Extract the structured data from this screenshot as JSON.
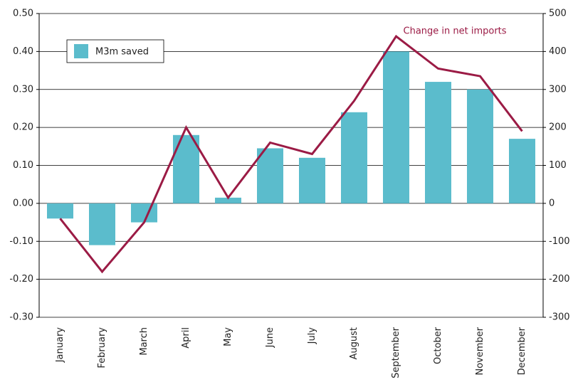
{
  "chart_data": {
    "type": "bar-line",
    "categories": [
      "January",
      "February",
      "March",
      "April",
      "May",
      "June",
      "July",
      "August",
      "September",
      "October",
      "November",
      "December"
    ],
    "series": [
      {
        "name": "M3m saved",
        "type": "bar",
        "color": "#5bbccc",
        "values": [
          -0.04,
          -0.11,
          -0.05,
          0.18,
          0.015,
          0.145,
          0.12,
          0.24,
          0.4,
          0.32,
          0.3,
          0.17
        ]
      },
      {
        "name": "Change in net imports",
        "type": "line",
        "axis": "y2",
        "color": "#9b1b45",
        "values": [
          -40,
          -180,
          -50,
          200,
          15,
          160,
          130,
          270,
          440,
          355,
          335,
          190
        ]
      }
    ],
    "ylim": [
      -0.3,
      0.5
    ],
    "yticks": [
      {
        "value": 0.5,
        "label": "0.50"
      },
      {
        "value": 0.4,
        "label": "0.40"
      },
      {
        "value": 0.3,
        "label": "0.30"
      },
      {
        "value": 0.2,
        "label": "0.20"
      },
      {
        "value": 0.1,
        "label": "0.10"
      },
      {
        "value": 0,
        "label": "0.00"
      },
      {
        "value": -0.1,
        "label": "-0.10"
      },
      {
        "value": -0.2,
        "label": "-0.20"
      },
      {
        "value": -0.3,
        "label": "-0.30"
      }
    ],
    "y2lim": [
      -300,
      500
    ],
    "y2ticks": [
      500,
      400,
      300,
      200,
      100,
      0,
      -100,
      -200,
      -300
    ],
    "grid": true
  }
}
